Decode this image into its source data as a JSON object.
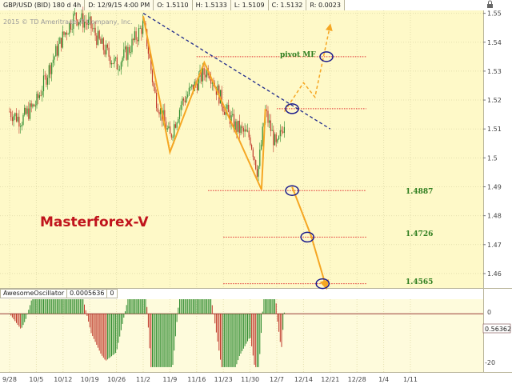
{
  "header": {
    "symbol": "GBP/USD (BID) 180 d 4h",
    "date": "D: 12/9/15 4:00 PM",
    "open": "O: 1.5110",
    "high": "H: 1.5133",
    "low": "L: 1.5109",
    "close": "C: 1.5132",
    "range": "R: 0.0023"
  },
  "copyright": "2015 © TD Ameritrade IP Company, Inc.",
  "brand": "Masterforex-V",
  "pivot_label": "pivot MF",
  "targets": [
    "1.4887",
    "1.4726",
    "1.4565"
  ],
  "oscillator": {
    "name": "AwesomeOscillator",
    "value": "0.0005636",
    "param": "0",
    "value_tag": "0.56362",
    "ticks": [
      "0",
      "-20"
    ]
  },
  "colors": {
    "plot_bg": "#fef9c8",
    "osc_bg": "#fefbdc",
    "bull": "#2e8b2e",
    "bear": "#c0392b",
    "zigzag": "#f5a623",
    "trendline": "#1f2a8c",
    "level": "#e03030",
    "target_text": "#2e7d1e"
  },
  "chart_data": {
    "type": "candlestick",
    "symbol": "GBP/USD",
    "timeframe": "4h",
    "x_ticks": [
      "9/28",
      "10/5",
      "10/12",
      "10/19",
      "10/26",
      "11/2",
      "11/9",
      "11/16",
      "11/23",
      "11/30",
      "12/7",
      "12/14",
      "12/21",
      "12/28",
      "1/4",
      "1/11"
    ],
    "y_ticks": [
      "1.55",
      "1.54",
      "1.53",
      "1.52",
      "1.51",
      "1.5",
      "1.49",
      "1.48",
      "1.47",
      "1.46"
    ],
    "ylim": [
      1.455,
      1.551
    ],
    "price_path": [
      [
        "9/28",
        1.516
      ],
      [
        "10/1",
        1.513
      ],
      [
        "10/5",
        1.519
      ],
      [
        "10/9",
        1.533
      ],
      [
        "10/12",
        1.542
      ],
      [
        "10/15",
        1.549
      ],
      [
        "10/19",
        1.546
      ],
      [
        "10/22",
        1.539
      ],
      [
        "10/26",
        1.532
      ],
      [
        "10/29",
        1.537
      ],
      [
        "11/2",
        1.546
      ],
      [
        "11/3",
        1.54
      ],
      [
        "11/5",
        1.522
      ],
      [
        "11/9",
        1.507
      ],
      [
        "11/12",
        1.519
      ],
      [
        "11/16",
        1.526
      ],
      [
        "11/19",
        1.531
      ],
      [
        "11/23",
        1.518
      ],
      [
        "11/26",
        1.511
      ],
      [
        "11/30",
        1.507
      ],
      [
        "12/2",
        1.495
      ],
      [
        "12/4",
        1.516
      ],
      [
        "12/7",
        1.503
      ],
      [
        "12/9",
        1.513
      ]
    ],
    "zigzag": [
      [
        "11/2",
        1.549
      ],
      [
        "11/9",
        1.502
      ],
      [
        "11/18",
        1.533
      ],
      [
        "12/3",
        1.489
      ],
      [
        "12/4",
        1.517
      ]
    ],
    "projection_up": [
      [
        "12/9",
        1.516
      ],
      [
        "12/14",
        1.526
      ],
      [
        "12/17",
        1.521
      ],
      [
        "12/21",
        1.546
      ]
    ],
    "projection_down": [
      [
        "12/11",
        1.49
      ],
      [
        "12/16",
        1.473
      ],
      [
        "12/20",
        1.455
      ]
    ],
    "trendline": [
      [
        "11/2",
        1.55
      ],
      [
        "12/21",
        1.51
      ]
    ],
    "levels": [
      {
        "label": "pivot MF",
        "value": 1.535
      },
      {
        "label": "",
        "value": 1.517
      },
      {
        "label": "1.4887",
        "value": 1.4887
      },
      {
        "label": "1.4726",
        "value": 1.4726
      },
      {
        "label": "1.4565",
        "value": 1.4565
      }
    ],
    "oscillator_ylim": [
      -24,
      6
    ]
  }
}
